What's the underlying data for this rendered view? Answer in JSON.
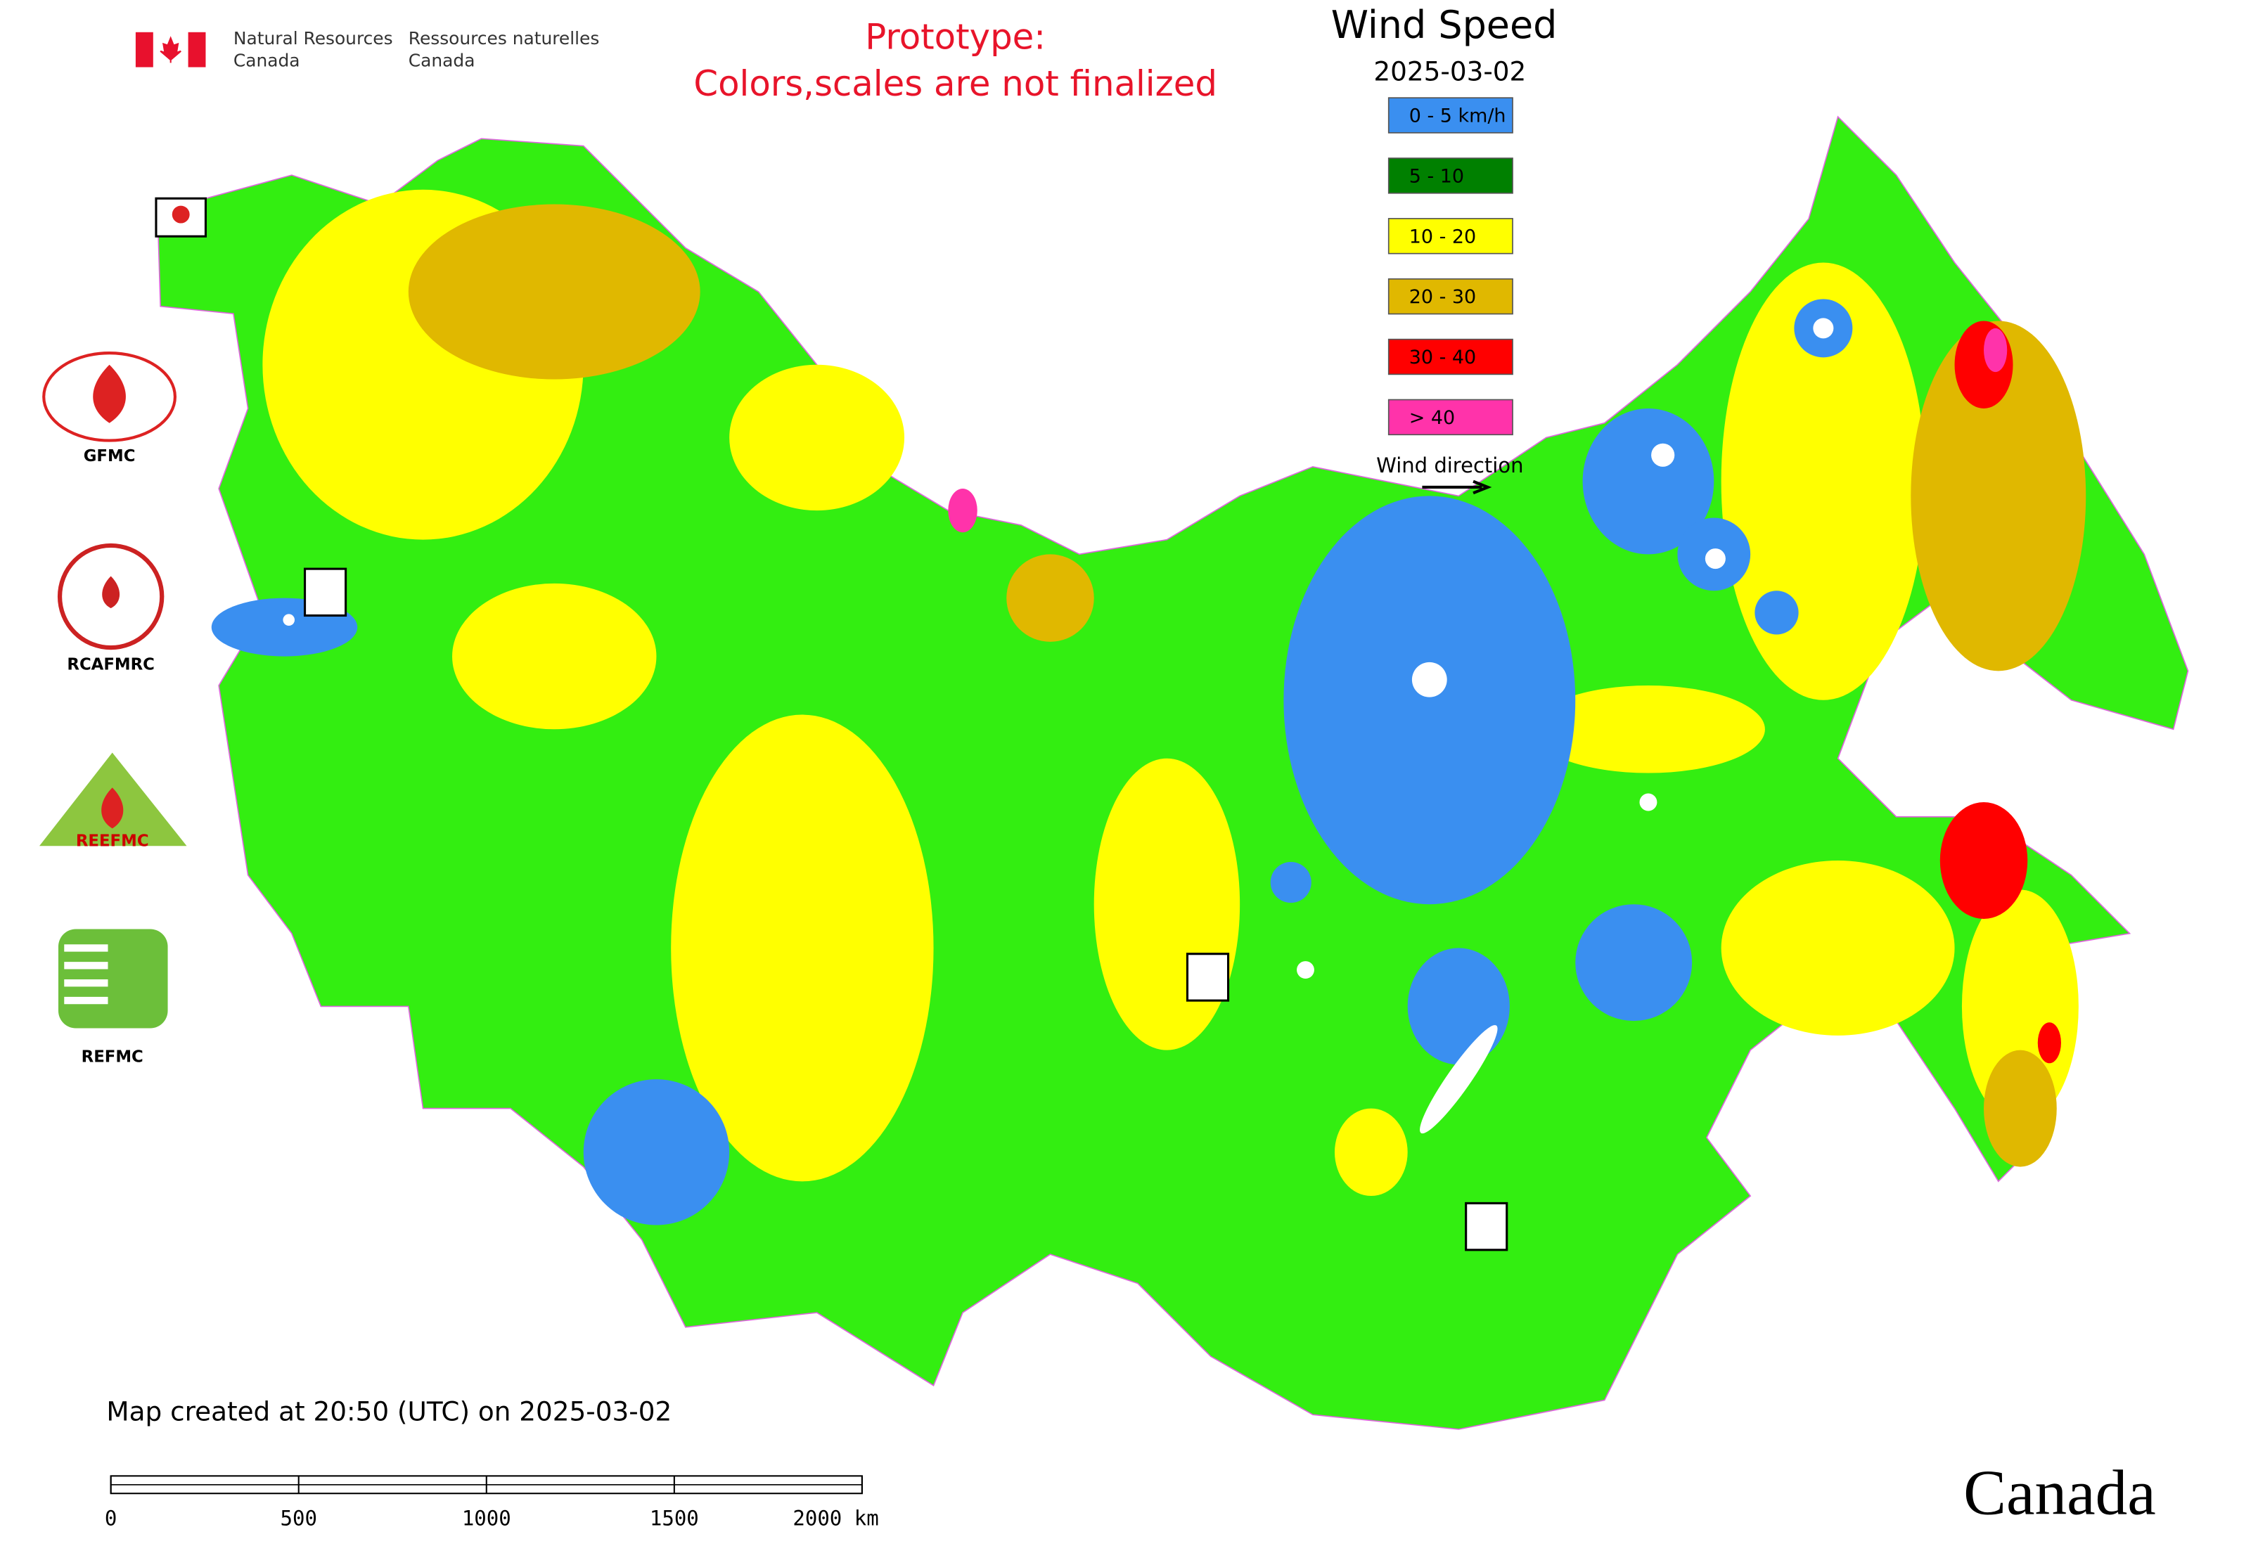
{
  "agency": {
    "en": [
      "Natural Resources",
      "Canada"
    ],
    "fr": [
      "Ressources naturelles",
      "Canada"
    ]
  },
  "notice": [
    "Prototype:",
    "Colors,scales are not finalized"
  ],
  "legend": {
    "title": "Wind Speed",
    "date": "2025-03-02",
    "items": [
      {
        "label": "0 - 5 km/h",
        "color": "#3a8ff0"
      },
      {
        "label": "5 - 10",
        "color": "#008000"
      },
      {
        "label": "10 - 20",
        "color": "#ffff00"
      },
      {
        "label": "20 - 30",
        "color": "#e0b800"
      },
      {
        "label": "30 - 40",
        "color": "#ff0000"
      },
      {
        "label": "> 40",
        "color": "#ff33aa"
      }
    ],
    "direction_label": "Wind direction"
  },
  "logos": [
    "GFMC",
    "RCAFMRC",
    "REEFMC",
    "REFMC"
  ],
  "footer": {
    "created": "Map created at 20:50 (UTC) on 2025-03-02",
    "scale": [
      "0",
      "500",
      "1000",
      "1500",
      "2000 km"
    ],
    "wordmark": "Canada"
  }
}
